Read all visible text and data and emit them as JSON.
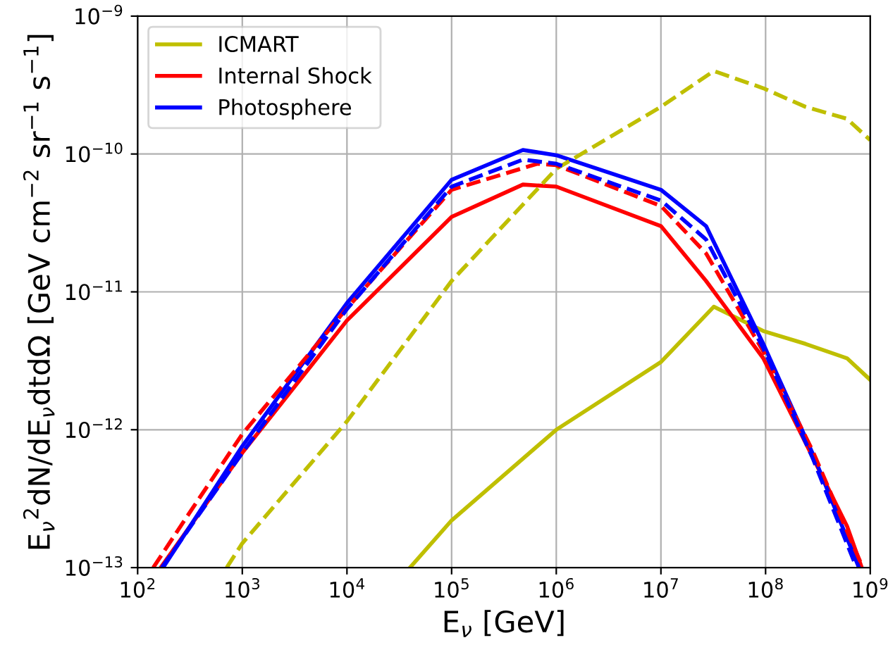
{
  "chart_data": {
    "type": "line",
    "xlabel": "E$_{ν}$ [GeV]",
    "ylabel": "E$_{ν}$$^{2}$dN/dE$_{ν}$dtdΩ [GeV cm$^{−2}$ sr$^{−1}$ s$^{−1}$]",
    "log": "xy",
    "grid": true,
    "legend": "top left",
    "marker": "none",
    "xlim": [
      100,
      1000000000
    ],
    "ylim": [
      1e-13,
      1e-09
    ],
    "xticks": [
      {
        "value": 100,
        "label": "10$^{2}$"
      },
      {
        "value": 1000,
        "label": "10$^{3}$"
      },
      {
        "value": 10000,
        "label": "10$^{4}$"
      },
      {
        "value": 100000,
        "label": "10$^{5}$"
      },
      {
        "value": 1000000,
        "label": "10$^{6}$"
      },
      {
        "value": 10000000,
        "label": "10$^{7}$"
      },
      {
        "value": 100000000,
        "label": "10$^{8}$"
      },
      {
        "value": 1000000000,
        "label": "10$^{9}$"
      }
    ],
    "yticks": [
      {
        "value": 1e-13,
        "label": "10$^{−13}$"
      },
      {
        "value": 1e-12,
        "label": "10$^{−12}$"
      },
      {
        "value": 1e-11,
        "label": "10$^{−11}$"
      },
      {
        "value": 1e-10,
        "label": "10$^{−10}$"
      },
      {
        "value": 1e-09,
        "label": "10$^{−9}$"
      }
    ],
    "series": [
      {
        "name": "ICMART",
        "color": "#bfbf00",
        "line_style": "solid",
        "x": [
          40000,
          100000,
          1000000,
          10000000,
          32000000,
          95000000,
          240000000,
          600000000,
          1000000000
        ],
        "values": [
          1e-13,
          2.2e-13,
          1e-12,
          3.1e-12,
          7.8e-12,
          5.2e-12,
          4.2e-12,
          3.3e-12,
          2.3e-12
        ]
      },
      {
        "name": "Internal Shock",
        "color": "#ff0000",
        "line_style": "solid",
        "x": [
          166,
          1000,
          10000,
          100000,
          480000,
          1000000,
          10000000,
          27000000,
          95000000,
          240000000,
          600000000,
          830000000
        ],
        "values": [
          1e-13,
          6.8e-13,
          6.2e-12,
          3.5e-11,
          6e-11,
          5.8e-11,
          3e-11,
          1.2e-11,
          3.3e-12,
          8.1e-13,
          2e-13,
          1e-13
        ]
      },
      {
        "name": "Photosphere",
        "color": "#0000ff",
        "line_style": "solid",
        "x": [
          175,
          1000,
          10000,
          100000,
          480000,
          1000000,
          10000000,
          27000000,
          95000000,
          280000000,
          780000000
        ],
        "values": [
          1e-13,
          7.6e-13,
          8.3e-12,
          6.5e-11,
          1.07e-10,
          9.8e-11,
          5.5e-11,
          3e-11,
          4.2e-12,
          6.8e-13,
          1e-13
        ]
      },
      {
        "color": "#bfbf00",
        "line_style": "dashed",
        "x": [
          710,
          1000,
          10000,
          100000,
          1000000,
          10000000,
          32000000,
          95000000,
          240000000,
          600000000,
          1000000000
        ],
        "values": [
          1e-13,
          1.5e-13,
          1.15e-12,
          1.2e-11,
          7.8e-11,
          2.2e-10,
          4e-10,
          3e-10,
          2.2e-10,
          1.8e-10,
          1.26e-10
        ]
      },
      {
        "color": "#ff0000",
        "line_style": "dashed",
        "x": [
          141,
          280,
          1000,
          10000,
          100000,
          660000,
          1000000,
          10000000,
          27000000,
          95000000,
          280000000,
          700000000,
          850000000
        ],
        "values": [
          1e-13,
          2.2e-13,
          9.3e-13,
          7.6e-12,
          5.5e-11,
          8.5e-11,
          8.3e-11,
          4.2e-11,
          1.9e-11,
          3.7e-12,
          7.1e-13,
          1.4e-13,
          1e-13
        ]
      },
      {
        "color": "#0000ff",
        "line_style": "dashed",
        "x": [
          170,
          1000,
          10000,
          100000,
          480000,
          1000000,
          10000000,
          27000000,
          95000000,
          280000000,
          740000000
        ],
        "values": [
          1e-13,
          6.8e-13,
          7.5e-12,
          5.8e-11,
          9.1e-11,
          8.5e-11,
          4.6e-11,
          2.4e-11,
          3.9e-12,
          6.3e-13,
          1e-13
        ]
      }
    ]
  }
}
